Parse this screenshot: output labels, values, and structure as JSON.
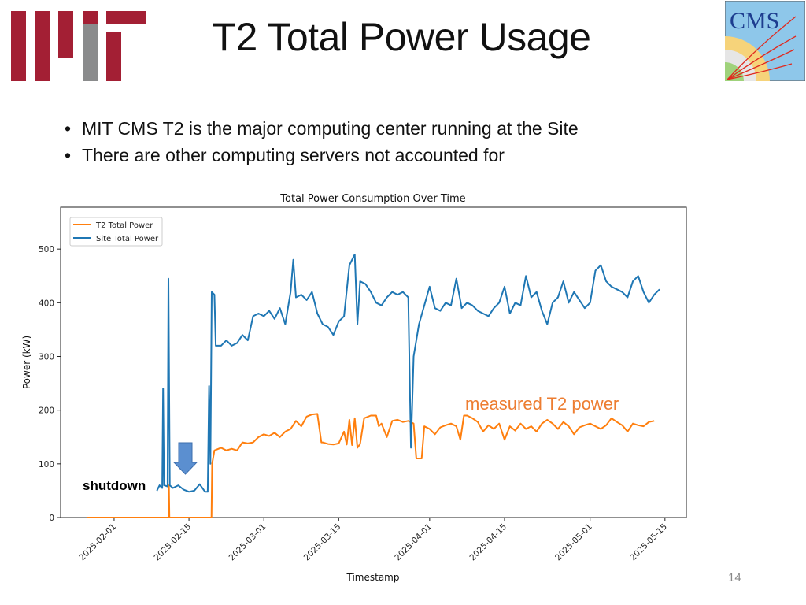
{
  "slide": {
    "title": "T2 Total Power Usage",
    "bullets": [
      "MIT CMS T2 is the major computing center running at the Site",
      "There are other computing servers not accounted for"
    ],
    "page_number": "14",
    "logos": {
      "left": "MIT",
      "right": "CMS Compact Muon Solenoid"
    },
    "annotations": {
      "shutdown": "shutdown",
      "measured": "measured T2 power"
    },
    "colors": {
      "mit_red": "#a31f34",
      "mit_grey": "#8a8b8c",
      "annotation_orange": "#ed7d31",
      "arrow_blue": "#5b8fd0"
    }
  },
  "chart_data": {
    "type": "line",
    "title": "Total Power Consumption Over Time",
    "xlabel": "Timestamp",
    "ylabel": "Power (kW)",
    "xlim": [
      "2025-01-22",
      "2025-05-19"
    ],
    "ylim": [
      0,
      578
    ],
    "xticks": [
      "2025-02-01",
      "2025-02-15",
      "2025-03-01",
      "2025-03-15",
      "2025-04-01",
      "2025-04-15",
      "2025-05-01",
      "2025-05-15"
    ],
    "yticks": [
      0,
      100,
      200,
      300,
      400,
      500
    ],
    "grid": false,
    "legend": "top-left",
    "series": [
      {
        "name": "T2 Total Power",
        "color": "#ff7f0e",
        "points": [
          [
            "2025-01-27",
            0
          ],
          [
            "2025-02-11T05:00",
            0
          ],
          [
            "2025-02-11T06:00",
            60
          ],
          [
            "2025-02-11T08:00",
            0
          ],
          [
            "2025-02-19T05:00",
            0
          ],
          [
            "2025-02-19T08:00",
            100
          ],
          [
            "2025-02-19T18:00",
            125
          ],
          [
            "2025-02-21",
            130
          ],
          [
            "2025-02-22",
            125
          ],
          [
            "2025-02-23",
            128
          ],
          [
            "2025-02-24",
            125
          ],
          [
            "2025-02-25",
            140
          ],
          [
            "2025-02-26",
            138
          ],
          [
            "2025-02-27",
            140
          ],
          [
            "2025-02-28",
            150
          ],
          [
            "2025-03-01",
            155
          ],
          [
            "2025-03-02",
            152
          ],
          [
            "2025-03-03",
            158
          ],
          [
            "2025-03-04",
            150
          ],
          [
            "2025-03-05",
            160
          ],
          [
            "2025-03-06",
            165
          ],
          [
            "2025-03-07",
            180
          ],
          [
            "2025-03-08",
            170
          ],
          [
            "2025-03-09",
            188
          ],
          [
            "2025-03-10",
            192
          ],
          [
            "2025-03-11",
            193
          ],
          [
            "2025-03-11T18:00",
            140
          ],
          [
            "2025-03-12",
            140
          ],
          [
            "2025-03-13",
            137
          ],
          [
            "2025-03-14",
            136
          ],
          [
            "2025-03-15",
            138
          ],
          [
            "2025-03-16",
            160
          ],
          [
            "2025-03-16T12:00",
            136
          ],
          [
            "2025-03-17",
            182
          ],
          [
            "2025-03-17T12:00",
            135
          ],
          [
            "2025-03-18",
            185
          ],
          [
            "2025-03-18T12:00",
            130
          ],
          [
            "2025-03-19",
            137
          ],
          [
            "2025-03-19T18:00",
            185
          ],
          [
            "2025-03-21",
            190
          ],
          [
            "2025-03-22",
            190
          ],
          [
            "2025-03-22T12:00",
            170
          ],
          [
            "2025-03-23",
            175
          ],
          [
            "2025-03-24",
            150
          ],
          [
            "2025-03-25",
            180
          ],
          [
            "2025-03-26",
            182
          ],
          [
            "2025-03-27",
            178
          ],
          [
            "2025-03-28",
            180
          ],
          [
            "2025-03-29",
            175
          ],
          [
            "2025-03-29T12:00",
            110
          ],
          [
            "2025-03-30T12:00",
            110
          ],
          [
            "2025-03-31",
            170
          ],
          [
            "2025-04-01",
            165
          ],
          [
            "2025-04-02",
            155
          ],
          [
            "2025-04-03",
            168
          ],
          [
            "2025-04-04",
            172
          ],
          [
            "2025-04-05",
            175
          ],
          [
            "2025-04-06",
            170
          ],
          [
            "2025-04-06T18:00",
            145
          ],
          [
            "2025-04-07T10:00",
            190
          ],
          [
            "2025-04-08",
            190
          ],
          [
            "2025-04-09",
            185
          ],
          [
            "2025-04-10",
            178
          ],
          [
            "2025-04-11",
            160
          ],
          [
            "2025-04-12",
            172
          ],
          [
            "2025-04-13",
            165
          ],
          [
            "2025-04-14",
            175
          ],
          [
            "2025-04-15",
            145
          ],
          [
            "2025-04-16",
            170
          ],
          [
            "2025-04-17",
            162
          ],
          [
            "2025-04-18",
            175
          ],
          [
            "2025-04-19",
            165
          ],
          [
            "2025-04-20",
            170
          ],
          [
            "2025-04-21",
            160
          ],
          [
            "2025-04-22",
            175
          ],
          [
            "2025-04-23",
            182
          ],
          [
            "2025-04-24",
            175
          ],
          [
            "2025-04-25",
            165
          ],
          [
            "2025-04-26",
            178
          ],
          [
            "2025-04-27",
            170
          ],
          [
            "2025-04-28",
            155
          ],
          [
            "2025-04-29",
            168
          ],
          [
            "2025-04-30",
            172
          ],
          [
            "2025-05-01",
            175
          ],
          [
            "2025-05-02",
            170
          ],
          [
            "2025-05-03",
            165
          ],
          [
            "2025-05-04",
            172
          ],
          [
            "2025-05-05",
            185
          ],
          [
            "2025-05-06",
            178
          ],
          [
            "2025-05-07",
            172
          ],
          [
            "2025-05-08",
            160
          ],
          [
            "2025-05-09",
            175
          ],
          [
            "2025-05-10",
            172
          ],
          [
            "2025-05-11",
            170
          ],
          [
            "2025-05-12",
            178
          ],
          [
            "2025-05-13",
            180
          ]
        ]
      },
      {
        "name": "Site Total Power",
        "color": "#1f77b4",
        "points": [
          [
            "2025-02-09",
            50
          ],
          [
            "2025-02-09T12:00",
            60
          ],
          [
            "2025-02-10",
            55
          ],
          [
            "2025-02-10T04:00",
            240
          ],
          [
            "2025-02-10T08:00",
            60
          ],
          [
            "2025-02-11",
            58
          ],
          [
            "2025-02-11T04:00",
            445
          ],
          [
            "2025-02-11T10:00",
            60
          ],
          [
            "2025-02-12",
            55
          ],
          [
            "2025-02-13",
            60
          ],
          [
            "2025-02-14",
            52
          ],
          [
            "2025-02-15",
            48
          ],
          [
            "2025-02-16",
            50
          ],
          [
            "2025-02-17",
            62
          ],
          [
            "2025-02-18",
            48
          ],
          [
            "2025-02-18T12:00",
            48
          ],
          [
            "2025-02-18T18:00",
            245
          ],
          [
            "2025-02-19",
            100
          ],
          [
            "2025-02-19T06:00",
            420
          ],
          [
            "2025-02-19T18:00",
            415
          ],
          [
            "2025-02-20",
            320
          ],
          [
            "2025-02-21",
            320
          ],
          [
            "2025-02-22",
            330
          ],
          [
            "2025-02-23",
            320
          ],
          [
            "2025-02-24",
            325
          ],
          [
            "2025-02-25",
            340
          ],
          [
            "2025-02-26",
            330
          ],
          [
            "2025-02-27",
            375
          ],
          [
            "2025-02-28",
            380
          ],
          [
            "2025-03-01",
            375
          ],
          [
            "2025-03-02",
            385
          ],
          [
            "2025-03-03",
            370
          ],
          [
            "2025-03-04",
            390
          ],
          [
            "2025-03-05",
            360
          ],
          [
            "2025-03-06",
            420
          ],
          [
            "2025-03-06T12:00",
            480
          ],
          [
            "2025-03-07",
            410
          ],
          [
            "2025-03-08",
            415
          ],
          [
            "2025-03-09",
            405
          ],
          [
            "2025-03-10",
            420
          ],
          [
            "2025-03-11",
            380
          ],
          [
            "2025-03-12",
            360
          ],
          [
            "2025-03-13",
            355
          ],
          [
            "2025-03-14",
            340
          ],
          [
            "2025-03-15",
            365
          ],
          [
            "2025-03-16",
            375
          ],
          [
            "2025-03-17",
            470
          ],
          [
            "2025-03-18",
            490
          ],
          [
            "2025-03-18T12:00",
            360
          ],
          [
            "2025-03-19",
            440
          ],
          [
            "2025-03-20",
            435
          ],
          [
            "2025-03-21",
            420
          ],
          [
            "2025-03-22",
            400
          ],
          [
            "2025-03-23",
            395
          ],
          [
            "2025-03-24",
            410
          ],
          [
            "2025-03-25",
            420
          ],
          [
            "2025-03-26",
            415
          ],
          [
            "2025-03-27",
            420
          ],
          [
            "2025-03-28",
            410
          ],
          [
            "2025-03-28T12:00",
            130
          ],
          [
            "2025-03-29",
            300
          ],
          [
            "2025-03-30",
            360
          ],
          [
            "2025-03-31",
            395
          ],
          [
            "2025-04-01",
            430
          ],
          [
            "2025-04-02",
            390
          ],
          [
            "2025-04-03",
            385
          ],
          [
            "2025-04-04",
            400
          ],
          [
            "2025-04-05",
            395
          ],
          [
            "2025-04-06",
            445
          ],
          [
            "2025-04-07",
            390
          ],
          [
            "2025-04-08",
            400
          ],
          [
            "2025-04-09",
            395
          ],
          [
            "2025-04-10",
            385
          ],
          [
            "2025-04-11",
            380
          ],
          [
            "2025-04-12",
            375
          ],
          [
            "2025-04-13",
            390
          ],
          [
            "2025-04-14",
            400
          ],
          [
            "2025-04-15",
            430
          ],
          [
            "2025-04-16",
            380
          ],
          [
            "2025-04-17",
            400
          ],
          [
            "2025-04-18",
            395
          ],
          [
            "2025-04-19",
            450
          ],
          [
            "2025-04-20",
            410
          ],
          [
            "2025-04-21",
            420
          ],
          [
            "2025-04-22",
            385
          ],
          [
            "2025-04-23",
            360
          ],
          [
            "2025-04-24",
            400
          ],
          [
            "2025-04-25",
            410
          ],
          [
            "2025-04-26",
            440
          ],
          [
            "2025-04-27",
            400
          ],
          [
            "2025-04-28",
            420
          ],
          [
            "2025-04-29",
            405
          ],
          [
            "2025-04-30",
            390
          ],
          [
            "2025-05-01",
            400
          ],
          [
            "2025-05-02",
            460
          ],
          [
            "2025-05-03",
            470
          ],
          [
            "2025-05-04",
            440
          ],
          [
            "2025-05-05",
            430
          ],
          [
            "2025-05-06",
            425
          ],
          [
            "2025-05-07",
            420
          ],
          [
            "2025-05-08",
            410
          ],
          [
            "2025-05-09",
            440
          ],
          [
            "2025-05-10",
            450
          ],
          [
            "2025-05-11",
            420
          ],
          [
            "2025-05-12",
            400
          ],
          [
            "2025-05-13",
            415
          ],
          [
            "2025-05-14",
            425
          ]
        ]
      }
    ]
  }
}
